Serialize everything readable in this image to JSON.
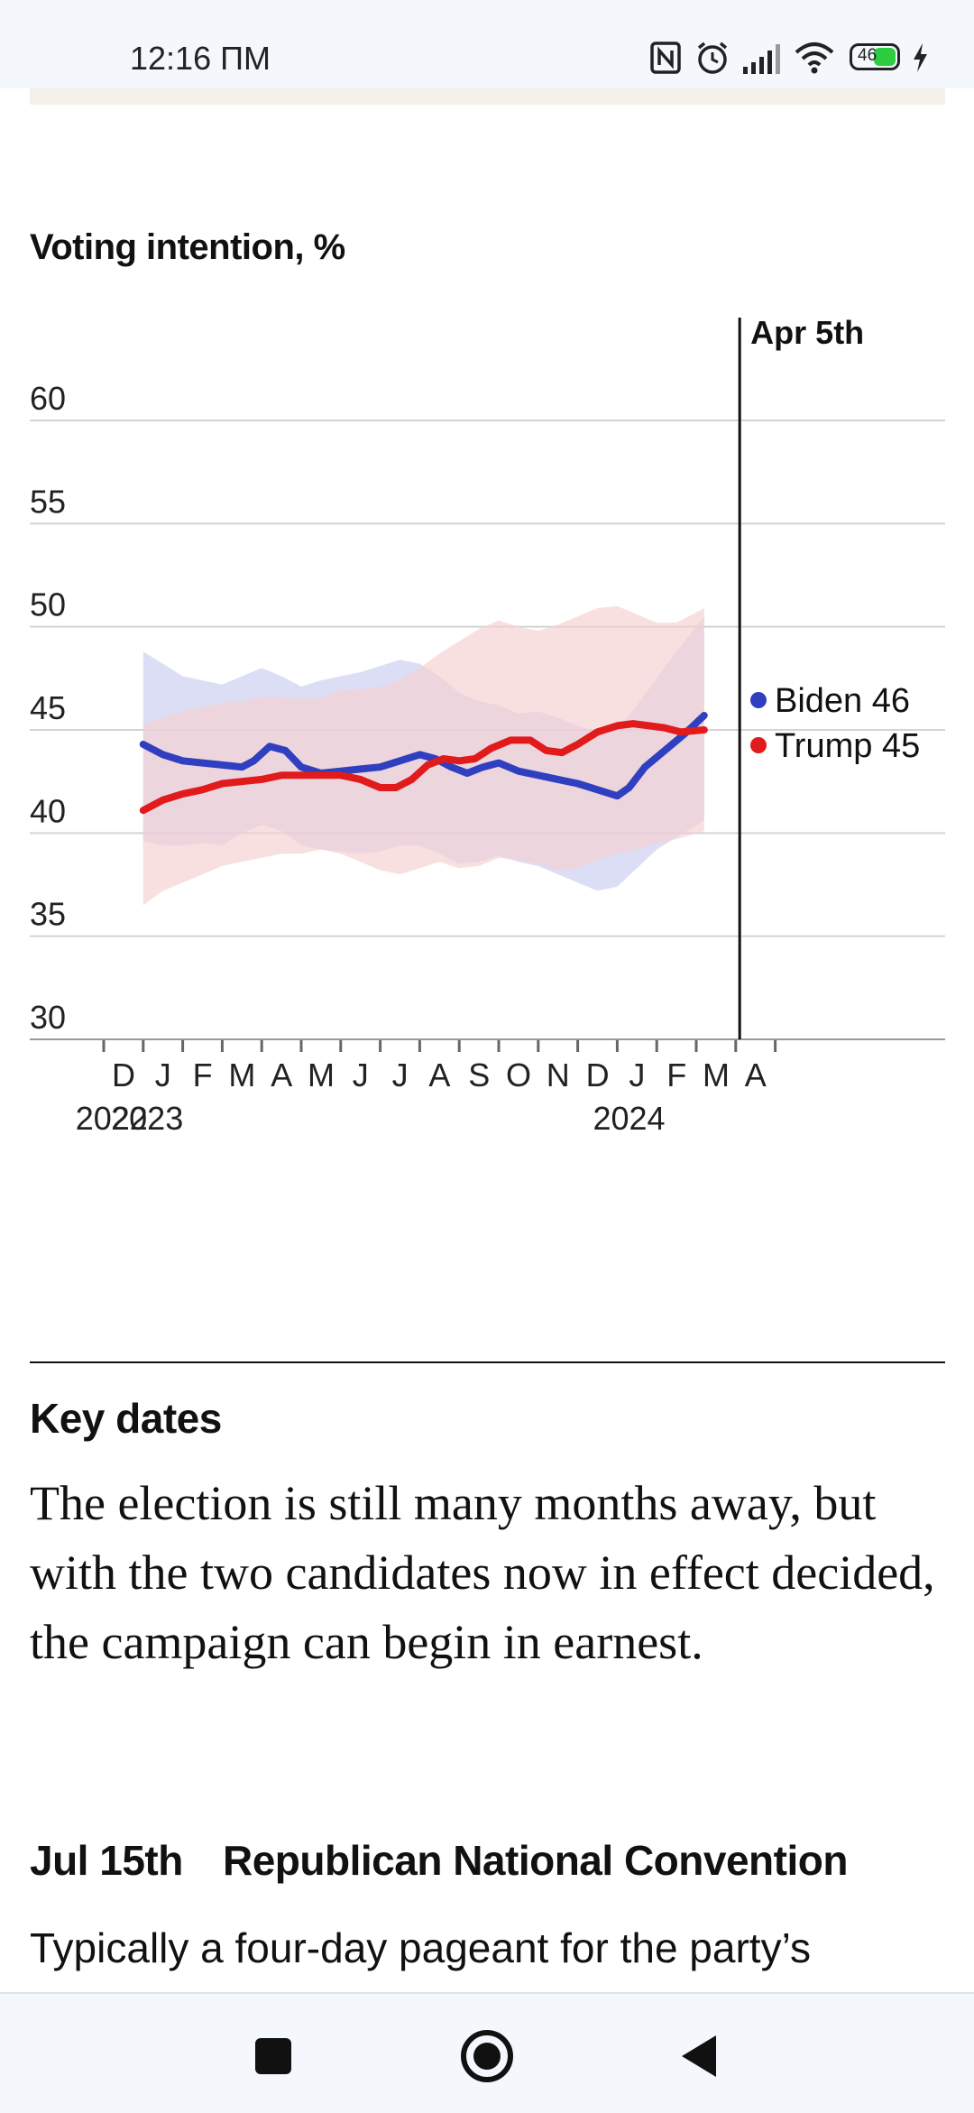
{
  "status_bar": {
    "time": "12:16 ПМ",
    "battery": "46",
    "icons": [
      "nfc-icon",
      "alarm-icon",
      "signal-icon",
      "wifi-icon",
      "battery-icon",
      "charging-icon"
    ]
  },
  "chart_data": {
    "type": "line",
    "title": "Voting intention, %",
    "ylim": [
      30,
      60
    ],
    "y_ticks": [
      30,
      35,
      40,
      45,
      50,
      55,
      60
    ],
    "x_start_month_index": 0,
    "month_labels": [
      "D",
      "J",
      "F",
      "M",
      "A",
      "M",
      "J",
      "J",
      "A",
      "S",
      "O",
      "N",
      "D",
      "J",
      "F",
      "M",
      "A"
    ],
    "year_labels": [
      {
        "label": "2022",
        "at": 0.2
      },
      {
        "label": "2023",
        "at": 1.1
      },
      {
        "label": "2024",
        "at": 13.3
      }
    ],
    "marker": {
      "label": "Apr 5th",
      "at": 16.1
    },
    "series_start": 1,
    "series": [
      {
        "name": "Biden",
        "label": "Biden 46",
        "color": "#2f3fbf",
        "band_color": "#c9cdf0",
        "points": [
          [
            1,
            44.3
          ],
          [
            1.5,
            43.8
          ],
          [
            2,
            43.5
          ],
          [
            2.5,
            43.4
          ],
          [
            3,
            43.3
          ],
          [
            3.5,
            43.2
          ],
          [
            3.8,
            43.5
          ],
          [
            4.2,
            44.2
          ],
          [
            4.6,
            44.0
          ],
          [
            5,
            43.2
          ],
          [
            5.5,
            42.9
          ],
          [
            6,
            43.0
          ],
          [
            6.5,
            43.1
          ],
          [
            7,
            43.2
          ],
          [
            7.5,
            43.5
          ],
          [
            8,
            43.8
          ],
          [
            8.4,
            43.6
          ],
          [
            8.8,
            43.2
          ],
          [
            9.2,
            42.9
          ],
          [
            9.6,
            43.2
          ],
          [
            10,
            43.4
          ],
          [
            10.5,
            43.0
          ],
          [
            11,
            42.8
          ],
          [
            11.5,
            42.6
          ],
          [
            12,
            42.4
          ],
          [
            12.5,
            42.1
          ],
          [
            13,
            41.8
          ],
          [
            13.3,
            42.2
          ],
          [
            13.7,
            43.2
          ],
          [
            14.2,
            44.0
          ],
          [
            14.7,
            44.8
          ],
          [
            15.2,
            45.7
          ]
        ],
        "band_upper": [
          [
            1,
            48.8
          ],
          [
            1.5,
            48.2
          ],
          [
            2,
            47.6
          ],
          [
            2.5,
            47.4
          ],
          [
            3,
            47.2
          ],
          [
            3.5,
            47.6
          ],
          [
            4,
            48.0
          ],
          [
            4.5,
            47.6
          ],
          [
            5,
            47.1
          ],
          [
            5.5,
            47.4
          ],
          [
            6,
            47.6
          ],
          [
            6.5,
            47.8
          ],
          [
            7,
            48.1
          ],
          [
            7.5,
            48.4
          ],
          [
            8,
            48.2
          ],
          [
            8.5,
            47.6
          ],
          [
            9,
            46.8
          ],
          [
            9.5,
            46.4
          ],
          [
            10,
            46.2
          ],
          [
            10.5,
            45.8
          ],
          [
            11,
            45.9
          ],
          [
            11.5,
            45.6
          ],
          [
            12,
            45.2
          ],
          [
            12.5,
            44.9
          ],
          [
            13,
            45.0
          ],
          [
            13.5,
            46.2
          ],
          [
            14,
            47.5
          ],
          [
            14.5,
            48.8
          ],
          [
            15.2,
            50.5
          ]
        ],
        "band_lower": [
          [
            1,
            39.6
          ],
          [
            1.5,
            39.4
          ],
          [
            2,
            39.4
          ],
          [
            2.5,
            39.5
          ],
          [
            3,
            39.4
          ],
          [
            3.5,
            40.0
          ],
          [
            4,
            40.4
          ],
          [
            4.5,
            40.1
          ],
          [
            5,
            39.4
          ],
          [
            5.5,
            39.2
          ],
          [
            6,
            39.1
          ],
          [
            6.5,
            39.0
          ],
          [
            7,
            39.1
          ],
          [
            7.5,
            39.4
          ],
          [
            8,
            39.4
          ],
          [
            8.5,
            39.0
          ],
          [
            9,
            38.5
          ],
          [
            9.5,
            38.6
          ],
          [
            10,
            38.9
          ],
          [
            10.5,
            38.6
          ],
          [
            11,
            38.4
          ],
          [
            11.5,
            38.0
          ],
          [
            12,
            37.6
          ],
          [
            12.5,
            37.2
          ],
          [
            13,
            37.4
          ],
          [
            13.5,
            38.3
          ],
          [
            14,
            39.2
          ],
          [
            14.5,
            39.8
          ],
          [
            15.2,
            40.6
          ]
        ]
      },
      {
        "name": "Trump",
        "label": "Trump 45",
        "color": "#e11b1b",
        "band_color": "#f6cfcf",
        "points": [
          [
            1,
            41.1
          ],
          [
            1.5,
            41.6
          ],
          [
            2,
            41.9
          ],
          [
            2.5,
            42.1
          ],
          [
            3,
            42.4
          ],
          [
            3.5,
            42.5
          ],
          [
            4,
            42.6
          ],
          [
            4.5,
            42.8
          ],
          [
            5,
            42.8
          ],
          [
            5.5,
            42.8
          ],
          [
            6,
            42.8
          ],
          [
            6.5,
            42.6
          ],
          [
            7,
            42.2
          ],
          [
            7.4,
            42.2
          ],
          [
            7.8,
            42.6
          ],
          [
            8.2,
            43.3
          ],
          [
            8.6,
            43.6
          ],
          [
            9,
            43.5
          ],
          [
            9.4,
            43.6
          ],
          [
            9.8,
            44.1
          ],
          [
            10.3,
            44.5
          ],
          [
            10.8,
            44.5
          ],
          [
            11.2,
            44.0
          ],
          [
            11.6,
            43.9
          ],
          [
            12,
            44.3
          ],
          [
            12.5,
            44.9
          ],
          [
            13,
            45.2
          ],
          [
            13.4,
            45.3
          ],
          [
            13.8,
            45.2
          ],
          [
            14.2,
            45.1
          ],
          [
            14.6,
            44.9
          ],
          [
            15.2,
            45.0
          ]
        ],
        "band_upper": [
          [
            1,
            45.3
          ],
          [
            1.5,
            45.6
          ],
          [
            2,
            45.9
          ],
          [
            2.5,
            46.1
          ],
          [
            3,
            46.3
          ],
          [
            3.5,
            46.4
          ],
          [
            4,
            46.6
          ],
          [
            4.5,
            46.6
          ],
          [
            5,
            46.5
          ],
          [
            5.5,
            46.6
          ],
          [
            6,
            46.9
          ],
          [
            6.5,
            47.0
          ],
          [
            7,
            47.1
          ],
          [
            7.5,
            47.4
          ],
          [
            8,
            48.0
          ],
          [
            8.5,
            48.7
          ],
          [
            9,
            49.3
          ],
          [
            9.5,
            49.9
          ],
          [
            10,
            50.3
          ],
          [
            10.5,
            50.0
          ],
          [
            11,
            49.8
          ],
          [
            11.5,
            50.1
          ],
          [
            12,
            50.5
          ],
          [
            12.5,
            50.9
          ],
          [
            13,
            51.0
          ],
          [
            13.5,
            50.6
          ],
          [
            14,
            50.2
          ],
          [
            14.5,
            50.2
          ],
          [
            15.2,
            50.9
          ]
        ],
        "band_lower": [
          [
            1,
            36.5
          ],
          [
            1.5,
            37.2
          ],
          [
            2,
            37.6
          ],
          [
            2.5,
            38.0
          ],
          [
            3,
            38.4
          ],
          [
            3.5,
            38.6
          ],
          [
            4,
            38.8
          ],
          [
            4.5,
            39.0
          ],
          [
            5,
            39.0
          ],
          [
            5.5,
            39.2
          ],
          [
            6,
            39.0
          ],
          [
            6.5,
            38.6
          ],
          [
            7,
            38.2
          ],
          [
            7.5,
            38.0
          ],
          [
            8,
            38.3
          ],
          [
            8.5,
            38.6
          ],
          [
            9,
            38.3
          ],
          [
            9.5,
            38.4
          ],
          [
            10,
            38.8
          ],
          [
            10.5,
            38.7
          ],
          [
            11,
            38.5
          ],
          [
            11.5,
            38.2
          ],
          [
            12,
            38.3
          ],
          [
            12.5,
            38.7
          ],
          [
            13,
            39.0
          ],
          [
            13.5,
            39.2
          ],
          [
            14,
            39.5
          ],
          [
            14.5,
            39.7
          ],
          [
            15.2,
            40.1
          ]
        ]
      }
    ]
  },
  "article": {
    "section_heading": "Key dates",
    "intro": "The election is still many months away, but with the two candidates now in effect decided, the campaign can begin in earnest.",
    "event_date": "Jul 15th",
    "event_title": "Republican National Convention",
    "event_body": "Typically a four-day pageant for the party’s"
  },
  "nav_bar": {
    "buttons": [
      "recents-button",
      "home-button",
      "back-button"
    ]
  }
}
